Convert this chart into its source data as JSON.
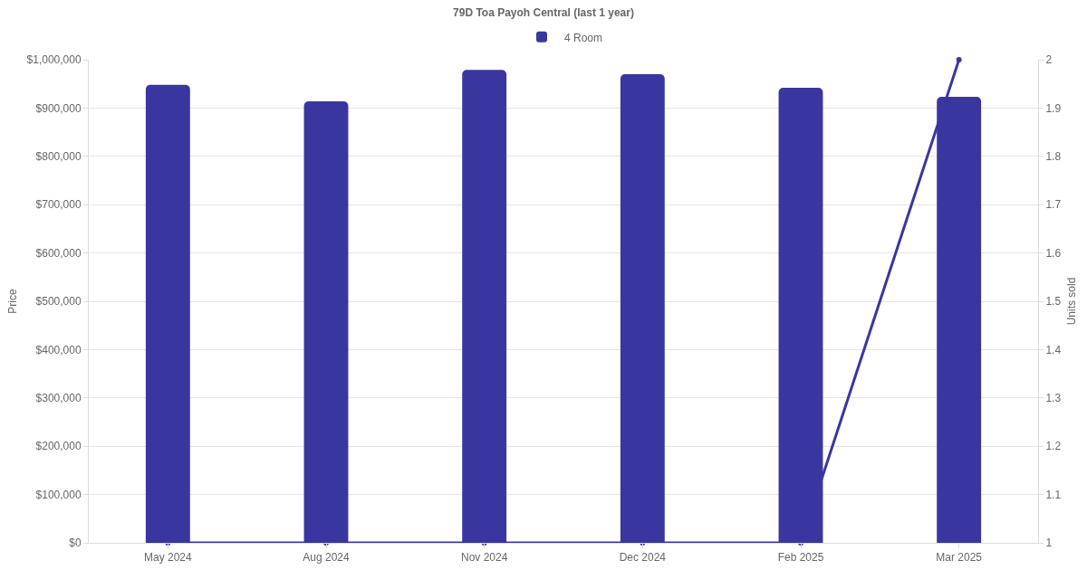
{
  "chart_data": {
    "type": "bar",
    "title": "79D Toa Payoh Central (last 1 year)",
    "ylabel": "Price",
    "y2label": "Units sold",
    "categories": [
      "May 2024",
      "Aug 2024",
      "Nov 2024",
      "Dec 2024",
      "Feb 2025",
      "Mar 2025"
    ],
    "series": [
      {
        "name": "4 Room",
        "color": "#3a36a0",
        "values": [
          948000,
          914000,
          979000,
          970000,
          942000,
          923000
        ]
      },
      {
        "type": "line",
        "axis": "y2",
        "color": "#3a36a0",
        "values": [
          1,
          1,
          1,
          1,
          1,
          2
        ]
      }
    ],
    "ylim": [
      0,
      1000000
    ],
    "yticks": [
      {
        "value": 0,
        "label": "$0"
      },
      {
        "value": 100000,
        "label": "$100,000"
      },
      {
        "value": 200000,
        "label": "$200,000"
      },
      {
        "value": 300000,
        "label": "$300,000"
      },
      {
        "value": 400000,
        "label": "$400,000"
      },
      {
        "value": 500000,
        "label": "$500,000"
      },
      {
        "value": 600000,
        "label": "$600,000"
      },
      {
        "value": 700000,
        "label": "$700,000"
      },
      {
        "value": 800000,
        "label": "$800,000"
      },
      {
        "value": 900000,
        "label": "$900,000"
      },
      {
        "value": 1000000,
        "label": "$1,000,000"
      }
    ],
    "y2lim": [
      1,
      2
    ],
    "y2ticks": [
      1,
      1.1,
      1.2,
      1.3,
      1.4,
      1.5,
      1.6,
      1.7,
      1.8,
      1.9,
      2
    ],
    "grid": "y",
    "legend": "top",
    "marker": "circle",
    "line_style": "solid"
  }
}
